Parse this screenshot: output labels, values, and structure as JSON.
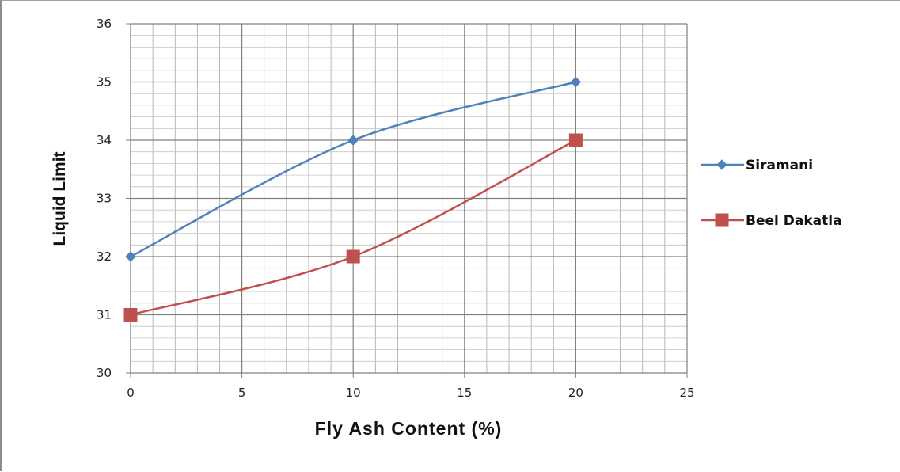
{
  "chart_data": {
    "type": "line",
    "xlabel": "Fly Ash Content (%)",
    "ylabel": "Liquid Limit",
    "xlim": [
      0,
      25
    ],
    "ylim": [
      30,
      36
    ],
    "x_major_ticks": [
      0,
      5,
      10,
      15,
      20,
      25
    ],
    "y_major_ticks": [
      30,
      31,
      32,
      33,
      34,
      35,
      36
    ],
    "grid": true,
    "legend_position": "right",
    "series": [
      {
        "name": "Siramani",
        "x": [
          0,
          10,
          20
        ],
        "y": [
          32,
          34,
          35
        ],
        "color": "#4f81bd",
        "marker": "diamond"
      },
      {
        "name": "Beel Dakatla",
        "x": [
          0,
          10,
          20
        ],
        "y": [
          31,
          32,
          34
        ],
        "color": "#c0504d",
        "marker": "square"
      }
    ]
  }
}
